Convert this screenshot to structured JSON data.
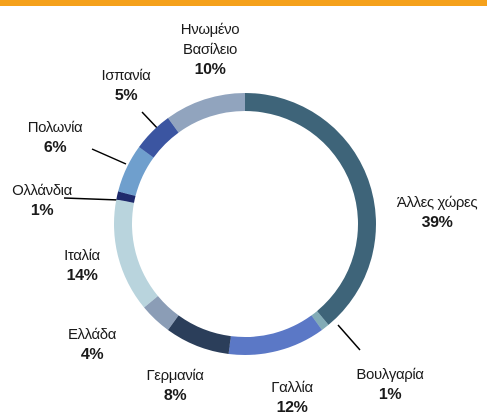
{
  "chart_data": {
    "type": "donut",
    "categories": [
      "Άλλες χώρες",
      "Βουλγαρία",
      "Γαλλία",
      "Γερμανία",
      "Ελλάδα",
      "Ιταλία",
      "Ολλάνδια",
      "Πολωνία",
      "Ισπανία",
      "Ηνωμένο Βασίλειο"
    ],
    "values": [
      39,
      1,
      12,
      8,
      4,
      14,
      1,
      6,
      5,
      10
    ],
    "value_labels": [
      "39%",
      "1%",
      "12%",
      "8%",
      "4%",
      "14%",
      "1%",
      "6%",
      "5%",
      "10%"
    ],
    "colors": [
      "#3e6479",
      "#82abb6",
      "#5b78c6",
      "#2b3e5a",
      "#8b9db6",
      "#b9d4dd",
      "#1f2a6c",
      "#6f9fcd",
      "#3b55a1",
      "#91a4be"
    ]
  }
}
